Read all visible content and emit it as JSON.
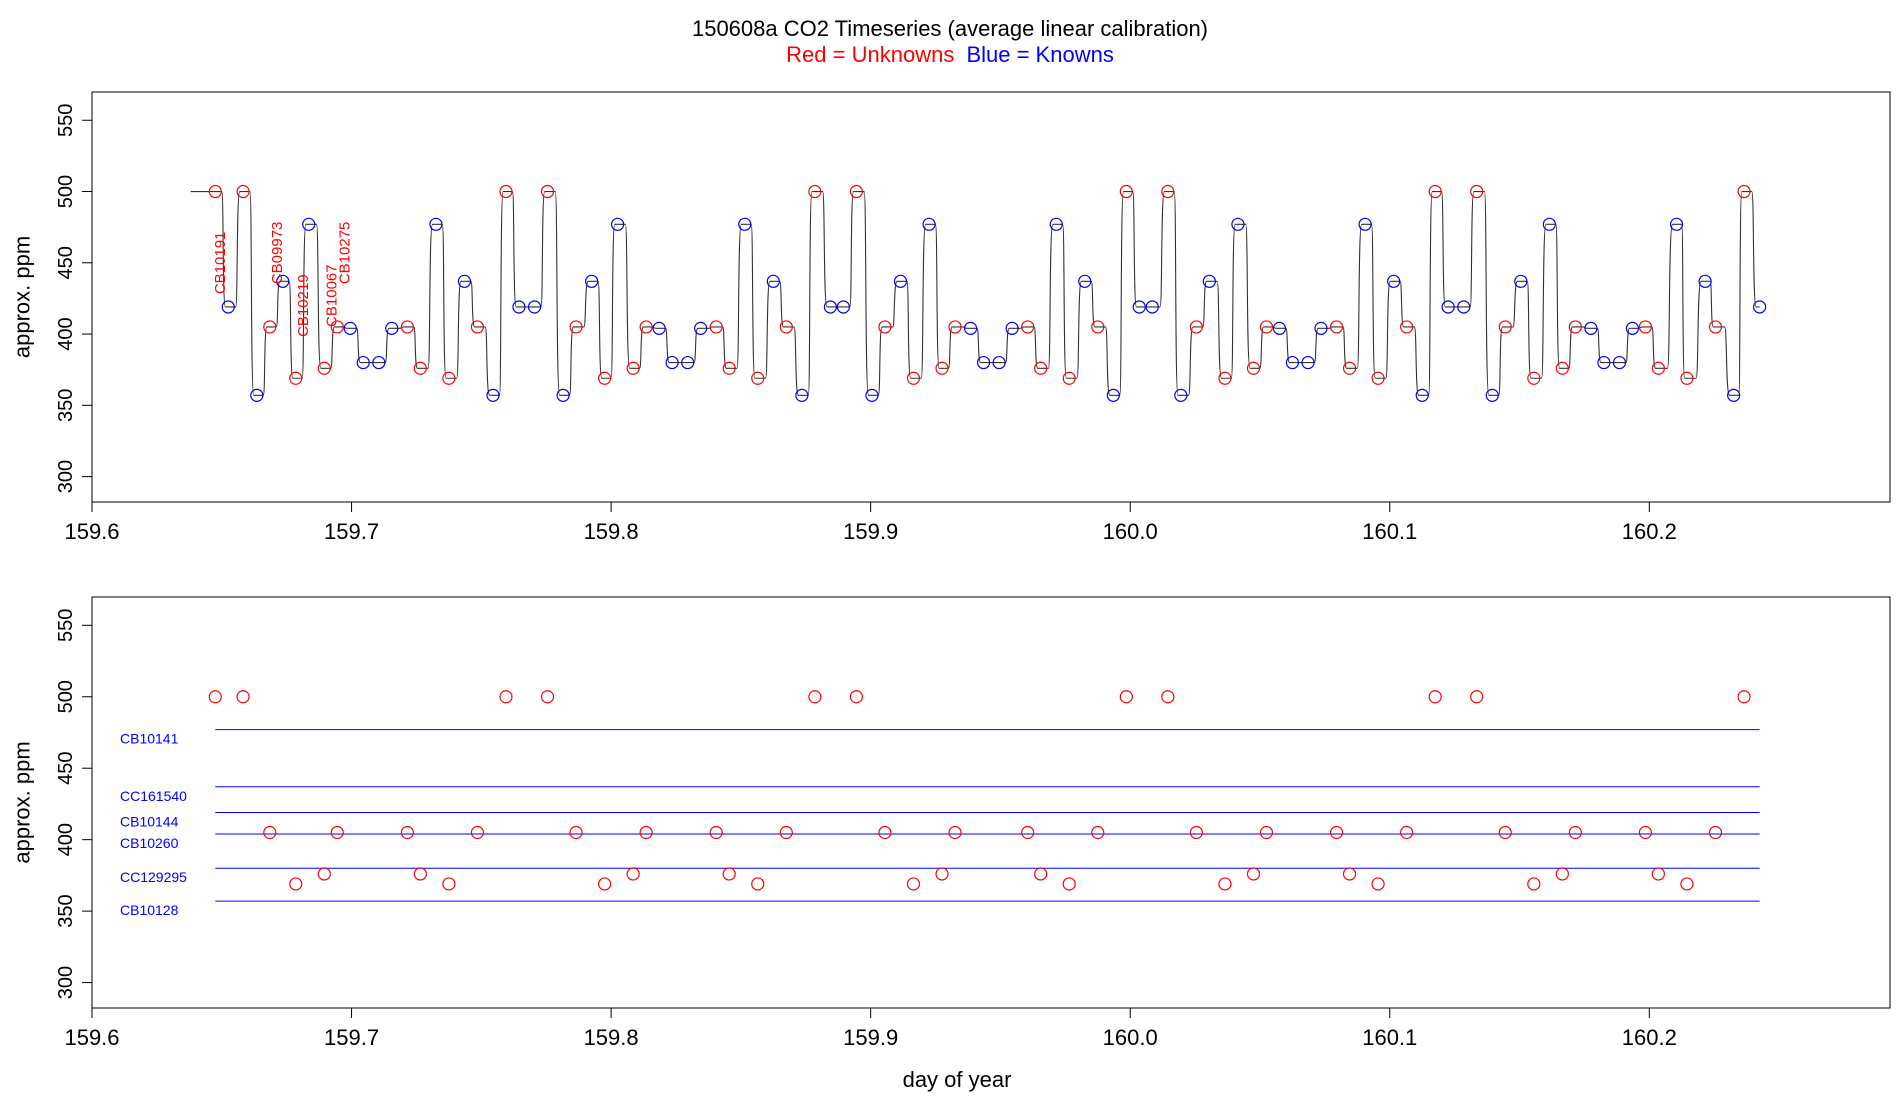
{
  "title": "150608a   CO2 Timeseries (average linear calibration)",
  "subtitle": {
    "red_text": "Red = Unknowns",
    "blue_text": "Blue = Knowns",
    "red_color": "#ff0000",
    "blue_color": "#0000ff"
  },
  "colors": {
    "unknown": "#ff0000",
    "known": "#0000ff",
    "trace": "#333333",
    "frame": "#000000"
  },
  "chart_data": [
    {
      "type": "line",
      "panel": "top",
      "ylabel": "approx. ppm",
      "xlabel": "",
      "xlim": [
        159.6,
        160.27
      ],
      "ylim": [
        292,
        560
      ],
      "x_ticks": [
        159.6,
        159.7,
        159.8,
        159.9,
        160.0,
        160.1,
        160.2
      ],
      "x_tick_labels": [
        "159.6",
        "159.7",
        "159.8",
        "159.9",
        "160.0",
        "160.1",
        "160.2"
      ],
      "y_ticks": [
        300,
        350,
        400,
        450,
        500,
        550
      ],
      "y_tick_labels": [
        "300",
        "350",
        "400",
        "450",
        "500",
        "550"
      ],
      "series": [
        {
          "name": "Unknowns",
          "color": "#ff0000",
          "x": [
            159.6475,
            159.6582,
            159.6685,
            159.6785,
            159.6895,
            159.6945,
            159.7215,
            159.7265,
            159.7375,
            159.7485,
            159.7595,
            159.7755,
            159.7865,
            159.7975,
            159.8085,
            159.8135,
            159.8405,
            159.8455,
            159.8565,
            159.8675,
            159.8785,
            159.8945,
            159.9055,
            159.9165,
            159.9275,
            159.9325,
            159.9605,
            159.9655,
            159.9765,
            159.9875,
            159.9985,
            160.0145,
            160.0255,
            160.0365,
            160.0475,
            160.0525,
            160.0795,
            160.0845,
            160.0955,
            160.1065,
            160.1175,
            160.1335,
            160.1445,
            160.1555,
            160.1665,
            160.1715,
            160.1985,
            160.2035,
            160.2145,
            160.2255,
            160.2365
          ],
          "y": [
            500,
            500,
            405,
            369,
            376,
            405,
            405,
            376,
            369,
            405,
            500,
            500,
            405,
            369,
            376,
            405,
            405,
            376,
            369,
            405,
            500,
            500,
            405,
            369,
            376,
            405,
            405,
            376,
            369,
            405,
            500,
            500,
            405,
            369,
            376,
            405,
            405,
            376,
            369,
            405,
            500,
            500,
            405,
            369,
            376,
            405,
            405,
            376,
            369,
            405,
            500
          ]
        },
        {
          "name": "Knowns",
          "color": "#0000ff",
          "x": [
            159.6525,
            159.6635,
            159.6735,
            159.6835,
            159.6995,
            159.7045,
            159.7105,
            159.7155,
            159.7325,
            159.7435,
            159.7545,
            159.7645,
            159.7705,
            159.7815,
            159.7925,
            159.8025,
            159.8185,
            159.8235,
            159.8295,
            159.8345,
            159.8515,
            159.8625,
            159.8735,
            159.8845,
            159.8895,
            159.9005,
            159.9115,
            159.9225,
            159.9385,
            159.9435,
            159.9495,
            159.9545,
            159.9715,
            159.9825,
            159.9935,
            160.0035,
            160.0085,
            160.0195,
            160.0305,
            160.0415,
            160.0575,
            160.0625,
            160.0685,
            160.0735,
            160.0905,
            160.1015,
            160.1125,
            160.1225,
            160.1285,
            160.1395,
            160.1505,
            160.1615,
            160.1775,
            160.1825,
            160.1885,
            160.1935,
            160.2105,
            160.2215,
            160.2325,
            160.2425
          ],
          "y": [
            419,
            357,
            437,
            477,
            404,
            380,
            380,
            404,
            477,
            437,
            357,
            419,
            419,
            357,
            437,
            477,
            404,
            380,
            380,
            404,
            477,
            437,
            357,
            419,
            419,
            357,
            437,
            477,
            404,
            380,
            380,
            404,
            477,
            437,
            357,
            419,
            419,
            357,
            437,
            477,
            404,
            380,
            380,
            404,
            477,
            437,
            357,
            419,
            419,
            357,
            437,
            477,
            404,
            380,
            380,
            404,
            477,
            437,
            357,
            419
          ]
        }
      ],
      "annotations": [
        {
          "text": "CB10191",
          "x": 159.6495,
          "y": 428,
          "color": "#ff0000"
        },
        {
          "text": "CB09973",
          "x": 159.6715,
          "y": 435,
          "color": "#ff0000"
        },
        {
          "text": "CB10219",
          "x": 159.6815,
          "y": 398,
          "color": "#ff0000"
        },
        {
          "text": "CB10067",
          "x": 159.6925,
          "y": 405,
          "color": "#ff0000"
        },
        {
          "text": "CB10275",
          "x": 159.6975,
          "y": 435,
          "color": "#ff0000"
        }
      ]
    },
    {
      "type": "scatter",
      "panel": "bottom",
      "ylabel": "approx. ppm",
      "xlabel": "day of year",
      "xlim": [
        159.6,
        160.27
      ],
      "ylim": [
        292,
        560
      ],
      "x_ticks": [
        159.6,
        159.7,
        159.8,
        159.9,
        160.0,
        160.1,
        160.2
      ],
      "x_tick_labels": [
        "159.6",
        "159.7",
        "159.8",
        "159.9",
        "160.0",
        "160.1",
        "160.2"
      ],
      "y_ticks": [
        300,
        350,
        400,
        450,
        500,
        550
      ],
      "y_tick_labels": [
        "300",
        "350",
        "400",
        "450",
        "500",
        "550"
      ],
      "series": [
        {
          "name": "Unknowns",
          "color": "#ff0000",
          "x": [
            159.6475,
            159.6582,
            159.6685,
            159.6785,
            159.6895,
            159.6945,
            159.7215,
            159.7265,
            159.7375,
            159.7485,
            159.7595,
            159.7755,
            159.7865,
            159.7975,
            159.8085,
            159.8135,
            159.8405,
            159.8455,
            159.8565,
            159.8675,
            159.8785,
            159.8945,
            159.9055,
            159.9165,
            159.9275,
            159.9325,
            159.9605,
            159.9655,
            159.9765,
            159.9875,
            159.9985,
            160.0145,
            160.0255,
            160.0365,
            160.0475,
            160.0525,
            160.0795,
            160.0845,
            160.0955,
            160.1065,
            160.1175,
            160.1335,
            160.1445,
            160.1555,
            160.1665,
            160.1715,
            160.1985,
            160.2035,
            160.2145,
            160.2255,
            160.2365
          ],
          "y": [
            500,
            500,
            405,
            369,
            376,
            405,
            405,
            376,
            369,
            405,
            500,
            500,
            405,
            369,
            376,
            405,
            405,
            376,
            369,
            405,
            500,
            500,
            405,
            369,
            376,
            405,
            405,
            376,
            369,
            405,
            500,
            500,
            405,
            369,
            376,
            405,
            405,
            376,
            369,
            405,
            500,
            500,
            405,
            369,
            376,
            405,
            405,
            376,
            369,
            405,
            500
          ]
        }
      ],
      "reference_lines": [
        {
          "label": "CB10141",
          "y": 477,
          "color": "#0000ff",
          "x_start": 159.6475,
          "x_end": 160.2425
        },
        {
          "label": "CC161540",
          "y": 437,
          "color": "#0000ff",
          "x_start": 159.6475,
          "x_end": 160.2425
        },
        {
          "label": "CB10144",
          "y": 419,
          "color": "#0000ff",
          "x_start": 159.6475,
          "x_end": 160.2425
        },
        {
          "label": "CB10260",
          "y": 404,
          "color": "#0000ff",
          "x_start": 159.6475,
          "x_end": 160.2425
        },
        {
          "label": "CC129295",
          "y": 380,
          "color": "#0000ff",
          "x_start": 159.6475,
          "x_end": 160.2425
        },
        {
          "label": "CB10128",
          "y": 357,
          "color": "#0000ff",
          "x_start": 159.6475,
          "x_end": 160.2425
        }
      ]
    }
  ]
}
